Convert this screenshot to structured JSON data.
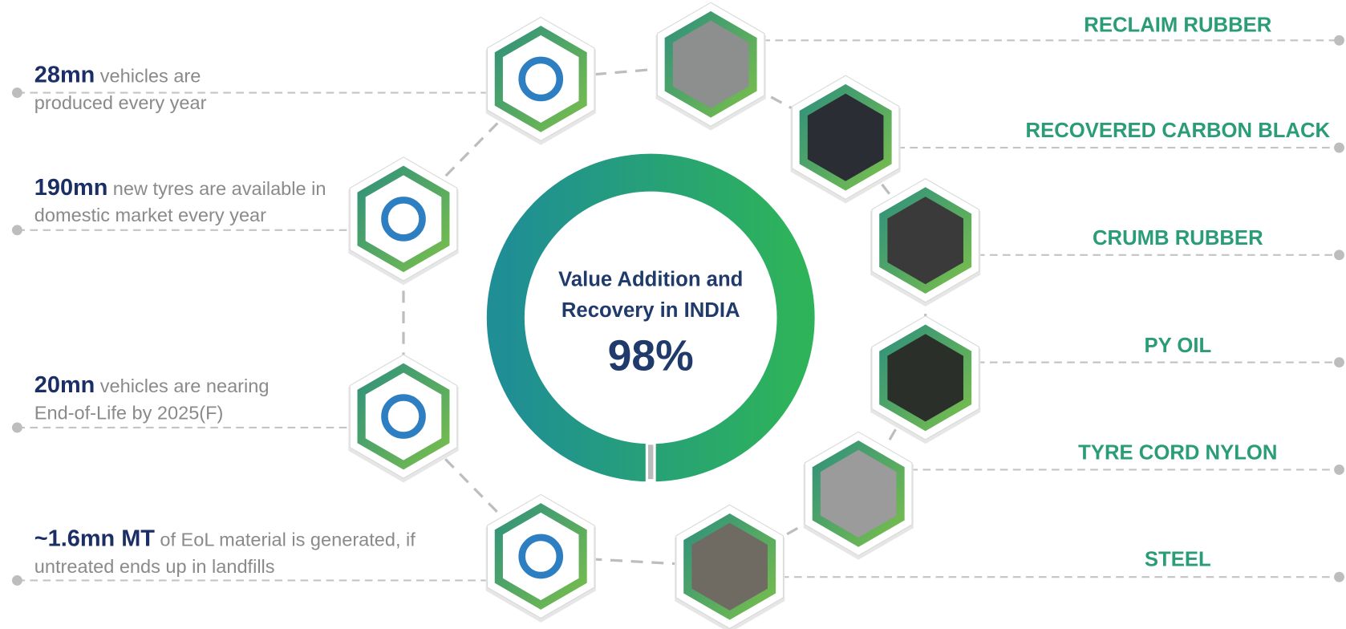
{
  "left_items": [
    {
      "highlight": "28mn",
      "text": "vehicles are produced every year"
    },
    {
      "highlight": "190mn",
      "text": "new tyres are available in domestic market every year"
    },
    {
      "highlight": "20mn",
      "text": "vehicles are nearing End-of-Life by 2025(F)"
    },
    {
      "highlight": "~1.6mn MT",
      "text": "of EoL material is generated, if untreated ends up in landfills"
    }
  ],
  "center": {
    "title": "Value Addition and Recovery in INDIA",
    "value": "98%"
  },
  "right_items": [
    "RECLAIM RUBBER",
    "RECOVERED CARBON BLACK",
    "CRUMB RUBBER",
    "PY OIL",
    "TYRE CORD NYLON",
    "STEEL"
  ]
}
